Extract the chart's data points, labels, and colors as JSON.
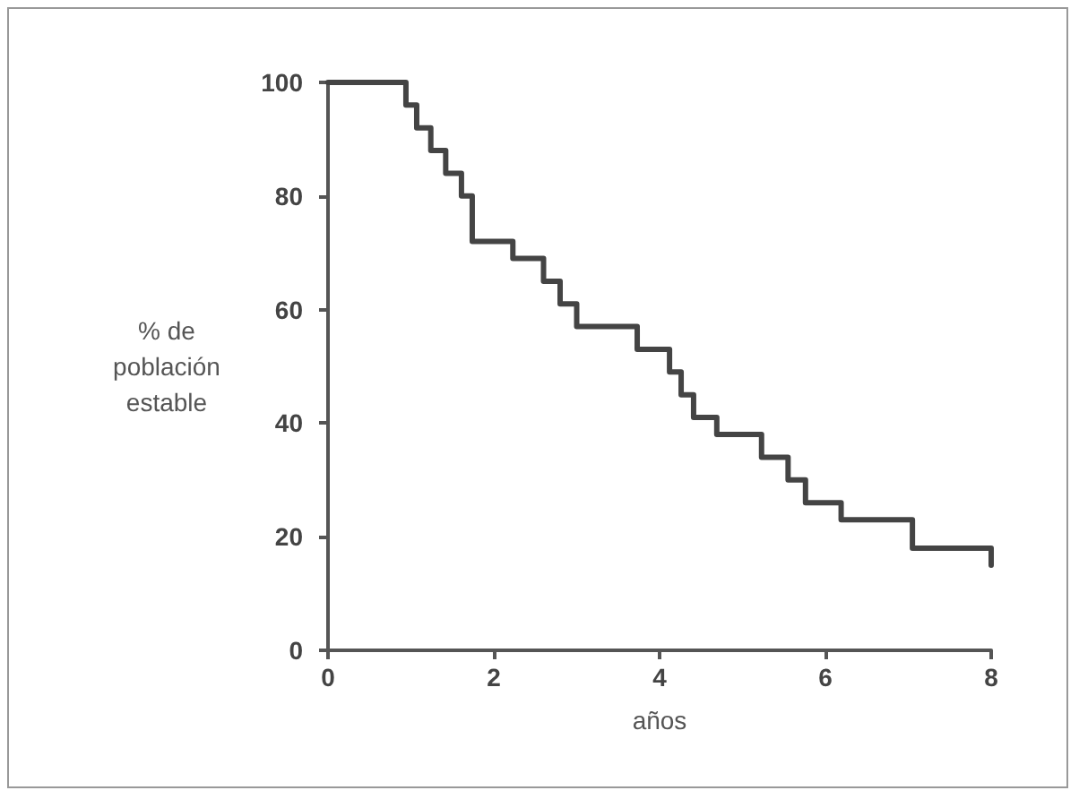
{
  "chart_data": {
    "type": "step",
    "xlabel": "años",
    "ylabel": "% de población estable",
    "x": [
      0,
      0.94,
      1.07,
      1.24,
      1.42,
      1.61,
      1.74,
      2.23,
      2.6,
      2.8,
      3.0,
      3.73,
      4.12,
      4.26,
      4.41,
      4.69,
      5.23,
      5.55,
      5.76,
      6.19,
      7.05,
      8.0
    ],
    "series": [
      {
        "color": "#444444",
        "values": [
          100,
          96,
          92,
          88,
          84,
          80,
          72,
          69,
          65,
          61,
          57,
          53,
          49,
          45,
          41,
          38,
          34,
          30,
          26,
          23,
          18,
          15
        ]
      }
    ],
    "xlim": [
      0,
      8
    ],
    "xticks": [
      0,
      2,
      4,
      6,
      8
    ],
    "ylim": [
      0,
      100
    ],
    "yticks": [
      0,
      20,
      40,
      60,
      80,
      100
    ],
    "grid": false,
    "marker": "none",
    "line_style": "solid"
  }
}
